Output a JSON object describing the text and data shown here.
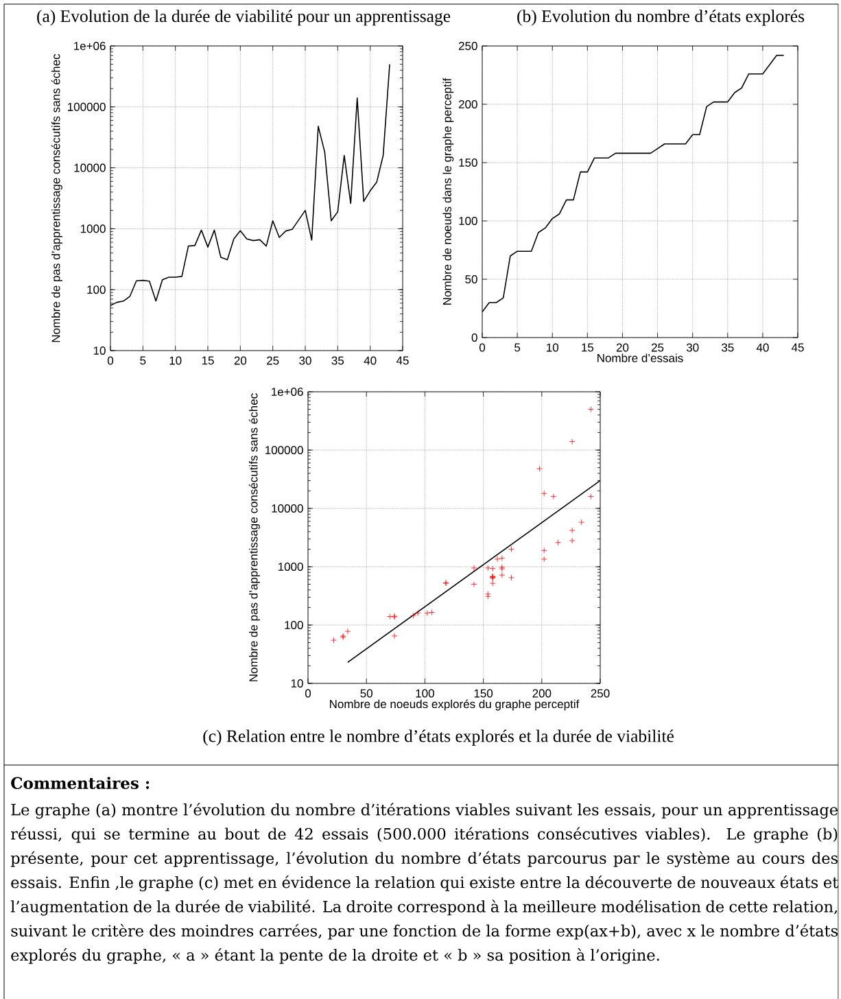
{
  "chart_data": [
    {
      "type": "line",
      "title": "(a) Evolution de la durée de viabilité pour un apprentissage",
      "ylabel": "Nombre de pas d’apprentissage consécutifs sans échec",
      "x": [
        0,
        1,
        2,
        3,
        4,
        5,
        6,
        7,
        8,
        9,
        10,
        11,
        12,
        13,
        14,
        15,
        16,
        17,
        18,
        19,
        20,
        21,
        22,
        23,
        24,
        25,
        26,
        27,
        28,
        29,
        30,
        31,
        32,
        33,
        34,
        35,
        36,
        37,
        38,
        39,
        40,
        41,
        42,
        43
      ],
      "values": [
        55,
        62,
        65,
        78,
        140,
        142,
        138,
        65,
        145,
        160,
        160,
        165,
        520,
        530,
        950,
        500,
        950,
        340,
        310,
        680,
        930,
        680,
        640,
        660,
        520,
        1350,
        720,
        920,
        980,
        1400,
        2000,
        650,
        48000,
        18000,
        1350,
        1900,
        16000,
        2600,
        140000,
        2800,
        4200,
        5800,
        16000,
        500000
      ],
      "color": "#000000",
      "xlim": [
        0,
        45
      ],
      "ylim": [
        10,
        1000000
      ],
      "xticks": [
        0,
        5,
        10,
        15,
        20,
        25,
        30,
        35,
        40,
        45
      ],
      "yticks": [
        10,
        100,
        1000,
        10000,
        100000,
        {
          "value": 1000000,
          "label": "1e+06"
        }
      ],
      "log": "y",
      "grid": true
    },
    {
      "type": "line",
      "title": "(b) Evolution du nombre d’états explorés",
      "xlabel": "Nombre d’essais",
      "ylabel": "Nombre de noeuds dans le graphe perceptif",
      "x": [
        0,
        1,
        2,
        3,
        4,
        5,
        6,
        7,
        8,
        9,
        10,
        11,
        12,
        13,
        14,
        15,
        16,
        17,
        18,
        19,
        20,
        21,
        22,
        23,
        24,
        25,
        26,
        27,
        28,
        29,
        30,
        31,
        32,
        33,
        34,
        35,
        36,
        37,
        38,
        39,
        40,
        41,
        42,
        43
      ],
      "values": [
        22,
        30,
        30,
        34,
        70,
        74,
        74,
        74,
        90,
        94,
        102,
        106,
        118,
        118,
        142,
        142,
        154,
        154,
        154,
        158,
        158,
        158,
        158,
        158,
        158,
        162,
        166,
        166,
        166,
        166,
        174,
        174,
        198,
        202,
        202,
        202,
        210,
        214,
        226,
        226,
        226,
        234,
        242,
        242
      ],
      "color": "#000000",
      "xlim": [
        0,
        45
      ],
      "ylim": [
        0,
        250
      ],
      "xticks": [
        0,
        5,
        10,
        15,
        20,
        25,
        30,
        35,
        40,
        45
      ],
      "yticks": [
        0,
        50,
        100,
        150,
        200,
        250
      ],
      "grid": true
    },
    {
      "type": "scatter",
      "title": "(c) Relation entre le nombre d’états explorés et la durée de viabilité",
      "xlabel": "Nombre de noeuds explorés du graphe perceptif",
      "ylabel": "Nombre de pas d’apprentissage consécutifs sans échec",
      "series": [
        {
          "type": "scatter",
          "color": "#ff0000",
          "marker": "cross",
          "x": [
            22,
            30,
            30,
            34,
            70,
            74,
            74,
            74,
            90,
            94,
            102,
            106,
            118,
            118,
            142,
            142,
            154,
            154,
            154,
            158,
            158,
            158,
            158,
            158,
            158,
            162,
            166,
            166,
            166,
            166,
            174,
            174,
            198,
            202,
            202,
            202,
            210,
            214,
            226,
            226,
            226,
            234,
            242,
            242
          ],
          "values": [
            55,
            62,
            65,
            78,
            140,
            142,
            138,
            65,
            145,
            160,
            160,
            165,
            520,
            530,
            950,
            500,
            950,
            340,
            310,
            680,
            930,
            680,
            640,
            660,
            520,
            1350,
            720,
            920,
            980,
            1400,
            2000,
            650,
            48000,
            18000,
            1350,
            1900,
            16000,
            2600,
            140000,
            2800,
            4200,
            5800,
            16000,
            500000
          ]
        },
        {
          "type": "line",
          "color": "#000000",
          "x": [
            34,
            250
          ],
          "values": [
            23,
            30000
          ]
        }
      ],
      "xlim": [
        0,
        250
      ],
      "ylim": [
        10,
        1000000
      ],
      "xticks": [
        0,
        50,
        100,
        150,
        200,
        250
      ],
      "yticks": [
        10,
        100,
        1000,
        10000,
        100000,
        {
          "value": 1000000,
          "label": "1e+06"
        }
      ],
      "log": "y",
      "grid": true
    },
    {
      "type": "other",
      "title": "**Commentaires :**",
      "annotations": [
        "Le graphe (a) montre l’évolution du nombre d’itérations viables suivant les essais, pour un apprentissage réussi, qui se termine au bout de 42 essais (500.000 itérations consécutives viables). Le graphe (b) présente, pour cet apprentissage, l’évolution du nombre d’états parcourus par le système au cours des essais. Enfin ,le graphe (c) met en évidence la relation qui existe entre la découverte de nouveaux états et l’augmentation de la durée de viabilité. La droite correspond à la meilleure modélisation de cette relation, suivant le critère des moindres carrées, par une fonction de la forme exp(ax+b), avec x le nombre d’états explorés du graphe, « a » étant la pente de la droite et « b » sa position à l’origine."
      ]
    }
  ]
}
